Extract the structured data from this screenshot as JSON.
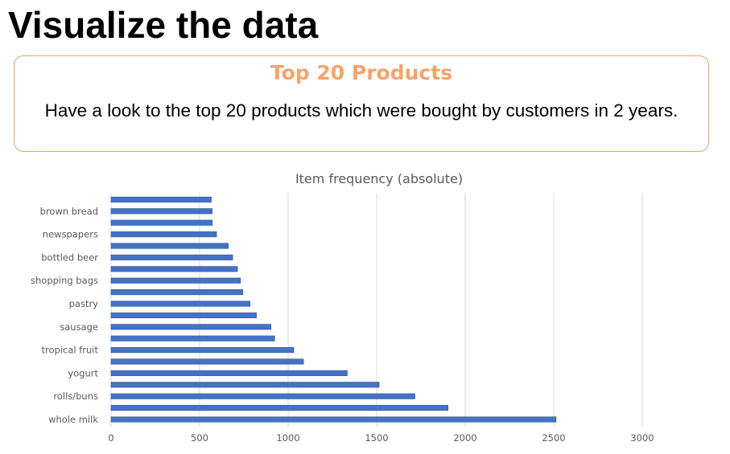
{
  "slide": {
    "title": "Visualize the data"
  },
  "callout": {
    "heading": "Top 20 Products",
    "body": "Have a look to the top 20 products which were bought by customers in 2 years."
  },
  "colors": {
    "bar": "#4472c4",
    "bar_dark": "#2f5597",
    "callout_border": "#f0a060",
    "callout_heading": "#f4a46a",
    "grid": "#d9d9d9",
    "axis_text": "#595959"
  },
  "chart_data": {
    "type": "bar",
    "orientation": "horizontal",
    "title": "Item frequency (absolute)",
    "xlabel": "",
    "ylabel": "",
    "xlim": [
      0,
      3000
    ],
    "xticks": [
      0,
      500,
      1000,
      1500,
      2000,
      2500,
      3000
    ],
    "grid": "vertical",
    "legend": "none",
    "categories": [
      "whole milk",
      "",
      "rolls/buns",
      "",
      "yogurt",
      "",
      "tropical fruit",
      "",
      "sausage",
      "",
      "pastry",
      "",
      "shopping bags",
      "",
      "bottled beer",
      "",
      "newspapers",
      "",
      "brown bread",
      ""
    ],
    "values": [
      2513,
      1903,
      1716,
      1514,
      1334,
      1087,
      1032,
      924,
      903,
      821,
      785,
      744,
      731,
      714,
      687,
      662,
      596,
      572,
      571,
      566
    ]
  }
}
